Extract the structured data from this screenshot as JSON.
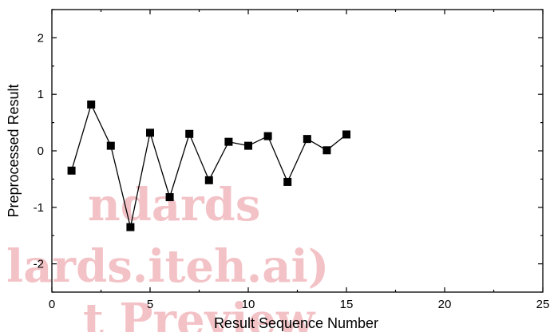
{
  "watermark": {
    "lines": [
      "ndards",
      "lards.iteh.ai)",
      "t Preview"
    ],
    "color": "#f3c2c6"
  },
  "chart_data": {
    "type": "line",
    "title": "",
    "xlabel": "Result Sequence Number",
    "ylabel": "Preprocessed Result",
    "xlim": [
      0,
      25
    ],
    "ylim": [
      -2.5,
      2.5
    ],
    "xticks": [
      0,
      5,
      10,
      15,
      20,
      25
    ],
    "yticks": [
      -2,
      -1,
      0,
      1,
      2
    ],
    "grid": false,
    "marker": "square",
    "series": [
      {
        "x": [
          1,
          2,
          3,
          4,
          5,
          6,
          7,
          8,
          9,
          10,
          11,
          12,
          13,
          14,
          15
        ],
        "y": [
          -0.35,
          0.82,
          0.09,
          -1.35,
          0.32,
          -0.82,
          0.3,
          -0.52,
          0.16,
          0.09,
          0.26,
          -0.55,
          0.21,
          0.01,
          0.29
        ]
      }
    ]
  }
}
